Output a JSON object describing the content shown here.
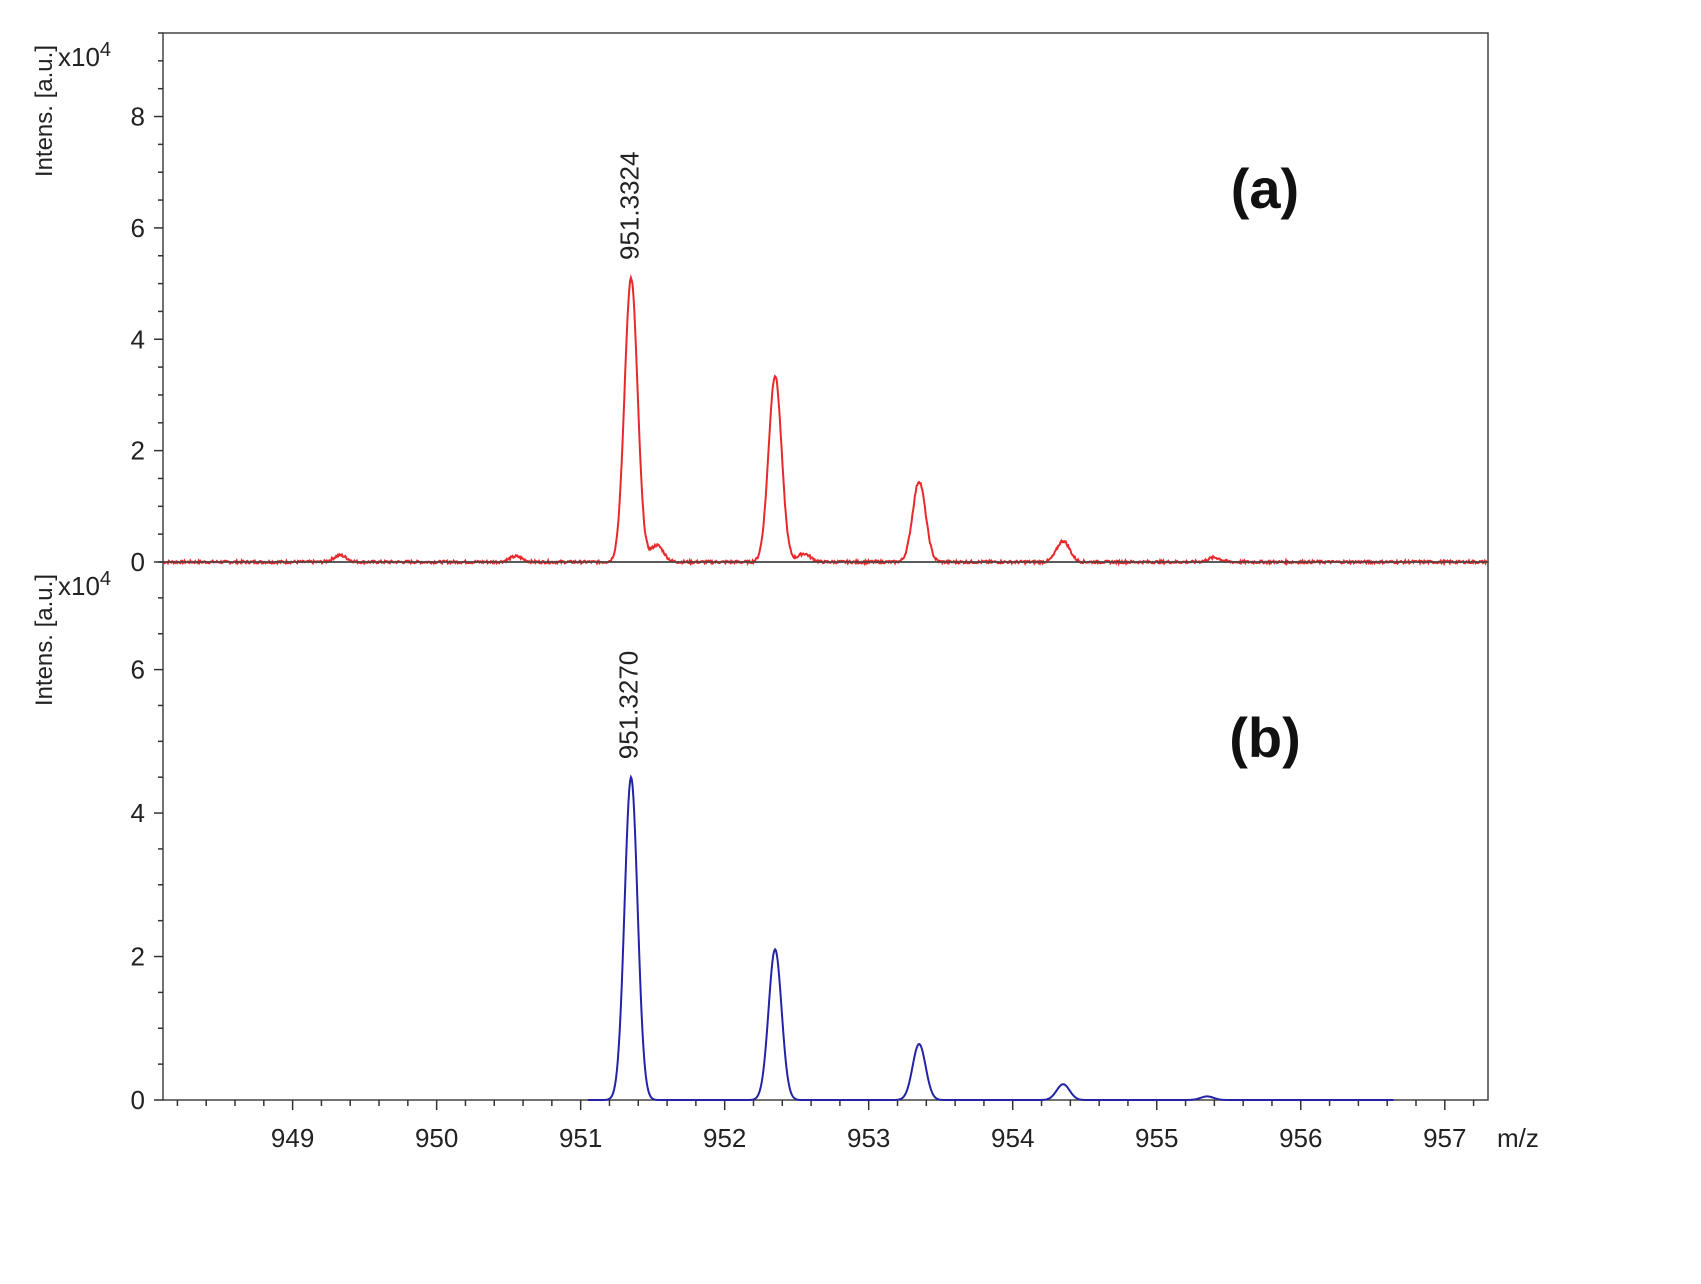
{
  "chart_data": [
    {
      "type": "line",
      "panel_label": "(a)",
      "ylabel": "Intens. [a.u.]",
      "y_multiplier": "x10",
      "y_multiplier_exp": "4",
      "ylim": [
        0,
        9.5
      ],
      "y_ticks": [
        0,
        2,
        4,
        6,
        8
      ],
      "xlim": [
        948.1,
        957.3
      ],
      "color": "#e8282b",
      "peak_annotation": {
        "x": 951.3324,
        "label": "951.3324"
      },
      "peaks": [
        {
          "x": 949.33,
          "y": 0.12
        },
        {
          "x": 950.55,
          "y": 0.1
        },
        {
          "x": 951.35,
          "y": 5.1
        },
        {
          "x": 951.53,
          "y": 0.3
        },
        {
          "x": 952.35,
          "y": 3.35
        },
        {
          "x": 952.55,
          "y": 0.15
        },
        {
          "x": 953.35,
          "y": 1.45
        },
        {
          "x": 954.35,
          "y": 0.38
        },
        {
          "x": 955.4,
          "y": 0.08
        }
      ]
    },
    {
      "type": "line",
      "panel_label": "(b)",
      "ylabel": "Intens. [a.u.]",
      "y_multiplier": "x10",
      "y_multiplier_exp": "4",
      "ylim": [
        0,
        7.5
      ],
      "y_ticks": [
        0,
        2,
        4,
        6
      ],
      "xlim": [
        948.1,
        957.3
      ],
      "xlabel": "m/z",
      "x_ticks": [
        949,
        950,
        951,
        952,
        953,
        954,
        955,
        956,
        957
      ],
      "color": "#2323a8",
      "peak_annotation": {
        "x": 951.327,
        "label": "951.3270"
      },
      "trace_range": [
        951.05,
        956.65
      ],
      "peaks": [
        {
          "x": 951.35,
          "y": 4.5
        },
        {
          "x": 952.35,
          "y": 2.1
        },
        {
          "x": 953.35,
          "y": 0.78
        },
        {
          "x": 954.35,
          "y": 0.22
        },
        {
          "x": 955.35,
          "y": 0.05
        }
      ]
    }
  ]
}
